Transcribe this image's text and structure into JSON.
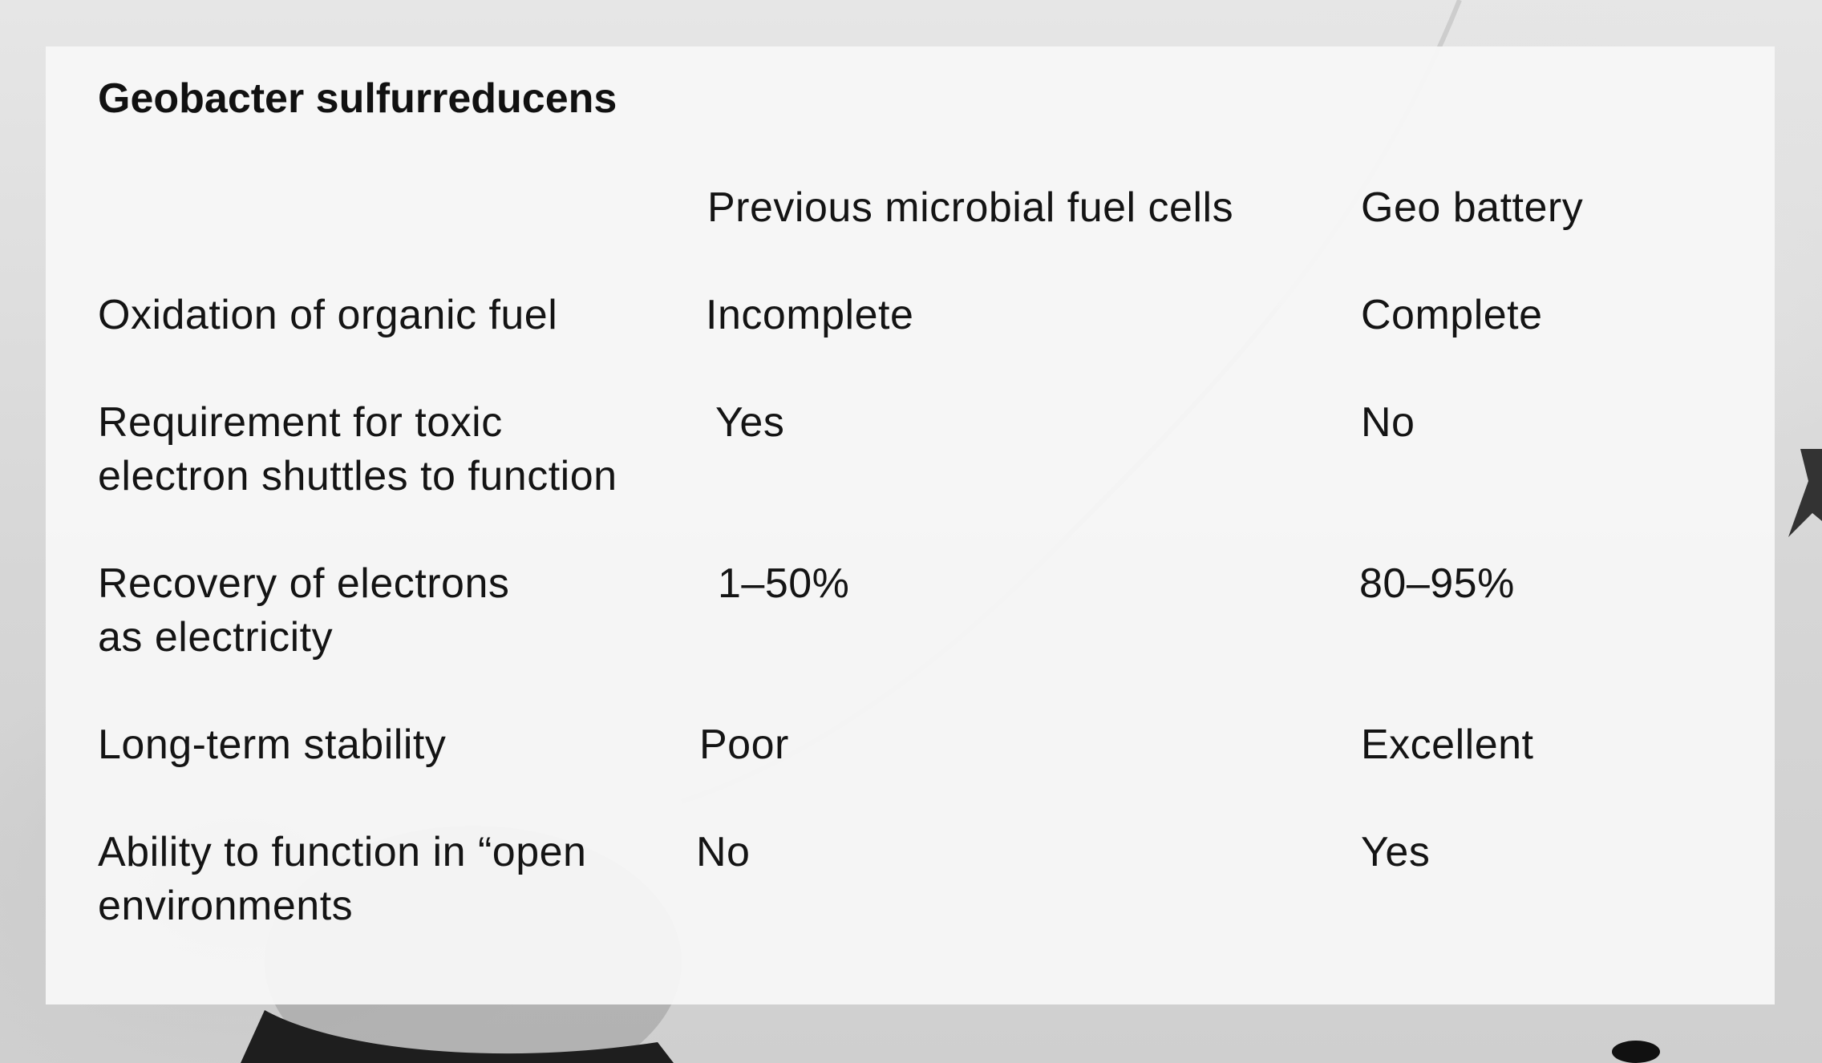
{
  "title": "Geobacter sulfurreducens",
  "table": {
    "headers": [
      "",
      "Previous microbial fuel cells",
      "Geo battery"
    ],
    "rows": [
      {
        "label_lines": [
          "Oxidation of organic fuel"
        ],
        "previous": "Incomplete",
        "geo": "Complete"
      },
      {
        "label_lines": [
          "Requirement for toxic",
          "electron shuttles to function"
        ],
        "previous": "Yes",
        "geo": "No"
      },
      {
        "label_lines": [
          "Recovery of electrons",
          "as electricity"
        ],
        "previous": "1–50%",
        "geo": "80–95%"
      },
      {
        "label_lines": [
          "Long-term stability"
        ],
        "previous": "Poor",
        "geo": "Excellent"
      },
      {
        "label_lines": [
          "Ability to function in “open",
          "environments"
        ],
        "previous": "No",
        "geo": "Yes"
      }
    ]
  }
}
